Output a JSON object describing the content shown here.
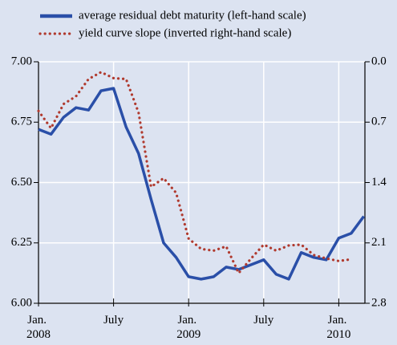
{
  "chart_data": {
    "type": "line",
    "categories": [
      "Jan. 2008",
      null,
      null,
      null,
      null,
      null,
      "July",
      null,
      null,
      null,
      null,
      null,
      "Jan. 2009",
      null,
      null,
      null,
      null,
      null,
      "July",
      null,
      null,
      null,
      null,
      null,
      "Jan. 2010",
      null,
      null
    ],
    "series": [
      {
        "name": "average residual debt maturity (left-hand scale)",
        "color": "#2a4fa8",
        "style": "solid",
        "values": [
          6.72,
          6.7,
          6.77,
          6.81,
          6.8,
          6.88,
          6.89,
          6.73,
          6.62,
          6.43,
          6.25,
          6.19,
          6.11,
          6.1,
          6.11,
          6.15,
          6.14,
          6.16,
          6.18,
          6.12,
          6.1,
          6.21,
          6.19,
          6.18,
          6.27,
          6.29,
          6.36
        ]
      },
      {
        "name": "yield curve slope (inverted right-hand scale)",
        "color": "#b03a2e",
        "style": "dotted",
        "axis": "y2",
        "values": [
          0.57,
          0.77,
          0.49,
          0.4,
          0.2,
          0.12,
          0.19,
          0.2,
          0.59,
          1.45,
          1.35,
          1.52,
          2.05,
          2.17,
          2.19,
          2.14,
          2.45,
          2.28,
          2.12,
          2.19,
          2.13,
          2.12,
          2.24,
          2.28,
          2.31,
          2.29,
          null
        ]
      }
    ],
    "ylim": [
      6,
      7
    ],
    "yticks": [
      {
        "value": 6,
        "label": "6.00"
      },
      6.25,
      {
        "value": 6.5,
        "label": "6.50"
      },
      6.75,
      {
        "value": 7,
        "label": "7.00"
      }
    ],
    "y2lim": [
      2.8,
      0
    ],
    "y2ticks": [
      {
        "value": 0,
        "label": "0.0"
      },
      0.7,
      1.4,
      2.1,
      2.8
    ],
    "grid": true
  }
}
